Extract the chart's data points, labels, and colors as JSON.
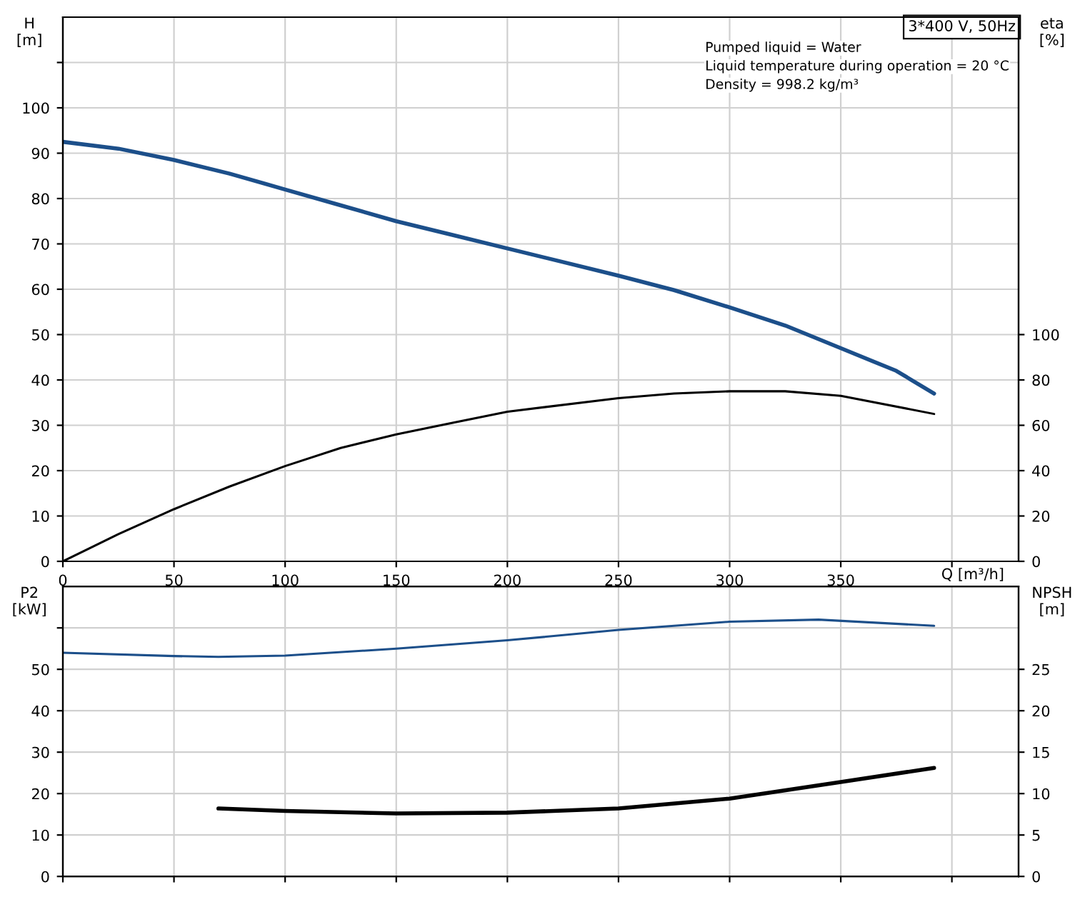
{
  "chart_data": [
    {
      "type": "line",
      "title": "3*400 V, 50Hz",
      "ylabel": "H\n[m]",
      "y2label": "eta\n[%]",
      "xlabel": "Q [m³/h]",
      "annotations": [
        "Pumped liquid = Water",
        "Liquid temperature during operation = 20 °C",
        "Density = 998.2 kg/m³"
      ],
      "xlim": [
        0,
        430
      ],
      "xticks": [
        0,
        50,
        100,
        150,
        200,
        250,
        300,
        350,
        {
          "value": 400,
          "label": null
        }
      ],
      "ylim": [
        0,
        120
      ],
      "yticks": [
        0,
        10,
        20,
        30,
        40,
        50,
        60,
        70,
        80,
        90,
        100,
        {
          "value": 110,
          "label": null
        }
      ],
      "y2lim": [
        0,
        240
      ],
      "y2ticks": [
        0,
        20,
        40,
        60,
        80,
        100
      ],
      "grid": true,
      "series": [
        {
          "color": "#1c4f8a",
          "x": [
            0,
            25,
            50,
            75,
            100,
            125,
            150,
            175,
            200,
            225,
            250,
            275,
            300,
            325,
            350,
            375,
            392
          ],
          "values": [
            92.5,
            91,
            88.5,
            85.5,
            82,
            78.5,
            75,
            72,
            69,
            66,
            63,
            59.8,
            56,
            52,
            47,
            42,
            37
          ]
        },
        {
          "color": "#000000",
          "axis": "y2",
          "x": [
            0,
            25,
            50,
            75,
            100,
            125,
            150,
            175,
            200,
            250,
            275,
            300,
            325,
            350,
            392
          ],
          "values": [
            0,
            12,
            23,
            33,
            42,
            50,
            56,
            61,
            66,
            72,
            74,
            75,
            75,
            73,
            65
          ]
        }
      ]
    },
    {
      "type": "line",
      "ylabel": "P2\n[kW]",
      "y2label": "NPSH\n[m]",
      "tick_labels": "y",
      "xlim": [
        0,
        430
      ],
      "xticks": [
        0,
        50,
        100,
        150,
        200,
        250,
        300,
        350,
        {
          "value": 400,
          "label": null
        }
      ],
      "ylim": [
        0,
        70
      ],
      "yticks": [
        0,
        10,
        20,
        30,
        40,
        50,
        {
          "value": 60,
          "label": null
        }
      ],
      "y2lim": [
        0,
        35
      ],
      "y2ticks": [
        0,
        5,
        10,
        15,
        20,
        25
      ],
      "grid": true,
      "series": [
        {
          "color": "#1c4f8a",
          "x": [
            0,
            50,
            70,
            100,
            150,
            200,
            250,
            300,
            340,
            392
          ],
          "values": [
            54,
            53.2,
            53,
            53.3,
            55,
            57,
            59.5,
            61.5,
            62,
            60.5
          ]
        },
        {
          "color": "#000000",
          "axis": "y2",
          "x": [
            70,
            100,
            150,
            200,
            250,
            300,
            350,
            392
          ],
          "values": [
            8.2,
            7.9,
            7.6,
            7.7,
            8.2,
            9.4,
            11.4,
            13.1
          ]
        }
      ]
    }
  ]
}
